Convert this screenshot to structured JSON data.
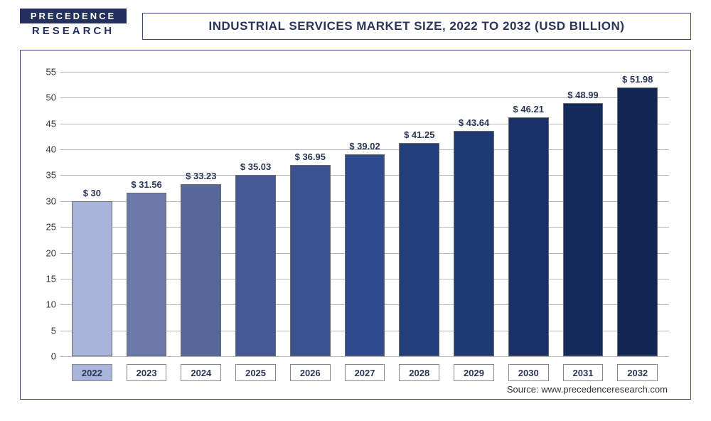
{
  "logo": {
    "top": "PRECEDENCE",
    "bottom": "RESEARCH"
  },
  "title": "INDUSTRIAL SERVICES MARKET SIZE, 2022 TO 2032 (USD BILLION)",
  "source": "Source: www.precedenceresearch.com",
  "chart": {
    "type": "bar",
    "ylim": [
      0,
      55
    ],
    "ytick_step": 5,
    "grid_color": "#b9b9b9",
    "background_color": "#ffffff",
    "label_fontsize": 13,
    "title_fontsize": 17,
    "bar_width": 0.74,
    "categories": [
      "2022",
      "2023",
      "2024",
      "2025",
      "2026",
      "2027",
      "2028",
      "2029",
      "2030",
      "2031",
      "2032"
    ],
    "values": [
      30,
      31.56,
      33.23,
      35.03,
      36.95,
      39.02,
      41.25,
      43.64,
      46.21,
      48.99,
      51.98
    ],
    "value_labels": [
      "$ 30",
      "$ 31.56",
      "$ 33.23",
      "$ 35.03",
      "$ 36.95",
      "$ 39.02",
      "$ 41.25",
      "$ 43.64",
      "$ 46.21",
      "$ 48.99",
      "$ 51.98"
    ],
    "bar_colors": [
      "#a8b4da",
      "#6a79a9",
      "#58679a",
      "#455a94",
      "#3a5190",
      "#2f4a8e",
      "#243e7c",
      "#1f3972",
      "#1a3168",
      "#152a5c",
      "#122654"
    ],
    "highlight_first_x": true,
    "x_pill_highlight_color": "#a8b4da"
  }
}
